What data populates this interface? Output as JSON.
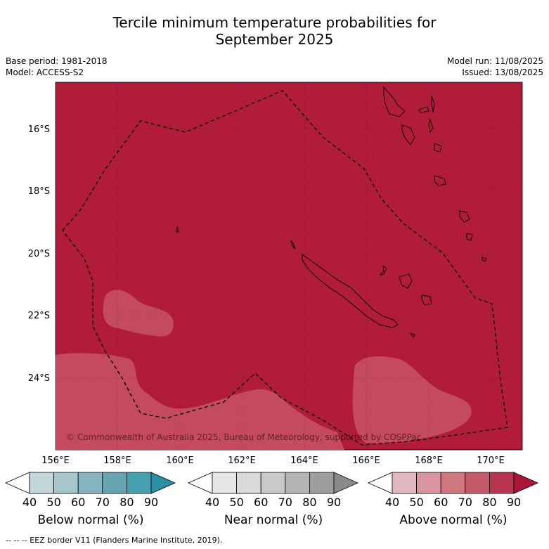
{
  "title_line1": "Tercile minimum temperature probabilities for",
  "title_line2": "September 2025",
  "base_period": "Base period: 1981-2018",
  "model": "Model: ACCESS-S2",
  "model_run": "Model run: 11/08/2025",
  "issued": "Issued: 13/08/2025",
  "lat_labels": [
    "16°S",
    "18°S",
    "20°S",
    "22°S",
    "24°S"
  ],
  "lon_labels": [
    "156°E",
    "158°E",
    "160°E",
    "162°E",
    "164°E",
    "166°E",
    "168°E",
    "170°E"
  ],
  "copyright": "© Commonwealth of Australia 2025, Bureau of Meteorology, supported by COSPPac",
  "colors": {
    "above_dark": "#b01c3a",
    "above_light": "#c44b5e",
    "below": [
      "#ffffff",
      "#c2d6dc",
      "#a6c6cd",
      "#87b4bf",
      "#66a4b2",
      "#45a0b0",
      "#2b8fa5"
    ],
    "near": [
      "#ffffff",
      "#e6e6e6",
      "#d9d9d9",
      "#c9c9c9",
      "#b4b4b4",
      "#9d9d9d",
      "#8a8a8a"
    ],
    "above": [
      "#ffffff",
      "#e2b8c0",
      "#d8959f",
      "#cf7880",
      "#c55a6a",
      "#b83550",
      "#a8163a"
    ]
  },
  "legend": {
    "ticks": [
      "40",
      "50",
      "60",
      "70",
      "80",
      "90"
    ],
    "below_label": "Below normal (%)",
    "near_label": "Near normal (%)",
    "above_label": "Above normal (%)"
  },
  "footer": "-- -- -- EEZ border V11 (Flanders Marine Institute, 2019)."
}
